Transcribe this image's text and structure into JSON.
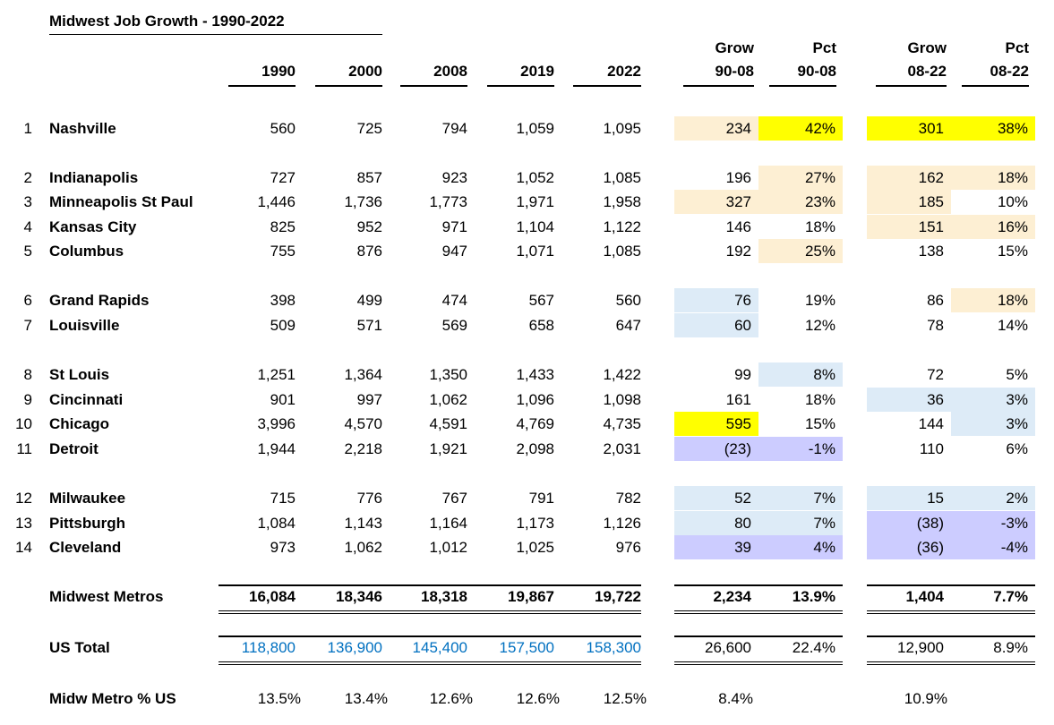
{
  "title": "Midwest Job Growth - 1990-2022",
  "colors": {
    "tan": "#fdefd3",
    "yellow": "#ffff00",
    "light_blue": "#ddebf7",
    "lavender": "#ccccff",
    "us_total_blue": "#0070c0"
  },
  "headers": {
    "years": [
      "1990",
      "2000",
      "2008",
      "2019",
      "2022"
    ],
    "grow_90_08": [
      "Grow",
      "90-08"
    ],
    "pct_90_08": [
      "Pct",
      "90-08"
    ],
    "grow_08_22": [
      "Grow",
      "08-22"
    ],
    "pct_08_22": [
      "Pct",
      "08-22"
    ]
  },
  "rows": [
    {
      "rank": "1",
      "name": "Nashville",
      "v": [
        "560",
        "725",
        "794",
        "1,059",
        "1,095"
      ],
      "g1": "234",
      "p1": "42%",
      "g2": "301",
      "p2": "38%",
      "c": [
        "tan",
        "yellow",
        "yellow",
        "yellow"
      ]
    },
    {
      "rank": "2",
      "name": "Indianapolis",
      "v": [
        "727",
        "857",
        "923",
        "1,052",
        "1,085"
      ],
      "g1": "196",
      "p1": "27%",
      "g2": "162",
      "p2": "18%",
      "c": [
        "",
        "tan",
        "tan",
        "tan"
      ]
    },
    {
      "rank": "3",
      "name": "Minneapolis St Paul",
      "v": [
        "1,446",
        "1,736",
        "1,773",
        "1,971",
        "1,958"
      ],
      "g1": "327",
      "p1": "23%",
      "g2": "185",
      "p2": "10%",
      "c": [
        "tan",
        "tan",
        "tan",
        ""
      ]
    },
    {
      "rank": "4",
      "name": "Kansas City",
      "v": [
        "825",
        "952",
        "971",
        "1,104",
        "1,122"
      ],
      "g1": "146",
      "p1": "18%",
      "g2": "151",
      "p2": "16%",
      "c": [
        "",
        "",
        "tan",
        "tan"
      ]
    },
    {
      "rank": "5",
      "name": "Columbus",
      "v": [
        "755",
        "876",
        "947",
        "1,071",
        "1,085"
      ],
      "g1": "192",
      "p1": "25%",
      "g2": "138",
      "p2": "15%",
      "c": [
        "",
        "tan",
        "",
        ""
      ]
    },
    {
      "rank": "6",
      "name": "Grand Rapids",
      "v": [
        "398",
        "499",
        "474",
        "567",
        "560"
      ],
      "g1": "76",
      "p1": "19%",
      "g2": "86",
      "p2": "18%",
      "c": [
        "light_blue",
        "",
        "",
        "tan"
      ]
    },
    {
      "rank": "7",
      "name": "Louisville",
      "v": [
        "509",
        "571",
        "569",
        "658",
        "647"
      ],
      "g1": "60",
      "p1": "12%",
      "g2": "78",
      "p2": "14%",
      "c": [
        "light_blue",
        "",
        "",
        ""
      ]
    },
    {
      "rank": "8",
      "name": "St Louis",
      "v": [
        "1,251",
        "1,364",
        "1,350",
        "1,433",
        "1,422"
      ],
      "g1": "99",
      "p1": "8%",
      "g2": "72",
      "p2": "5%",
      "c": [
        "",
        "light_blue",
        "",
        ""
      ]
    },
    {
      "rank": "9",
      "name": "Cincinnati",
      "v": [
        "901",
        "997",
        "1,062",
        "1,096",
        "1,098"
      ],
      "g1": "161",
      "p1": "18%",
      "g2": "36",
      "p2": "3%",
      "c": [
        "",
        "",
        "light_blue",
        "light_blue"
      ]
    },
    {
      "rank": "10",
      "name": "Chicago",
      "v": [
        "3,996",
        "4,570",
        "4,591",
        "4,769",
        "4,735"
      ],
      "g1": "595",
      "p1": "15%",
      "g2": "144",
      "p2": "3%",
      "c": [
        "yellow",
        "",
        "",
        "light_blue"
      ]
    },
    {
      "rank": "11",
      "name": "Detroit",
      "v": [
        "1,944",
        "2,218",
        "1,921",
        "2,098",
        "2,031"
      ],
      "g1": "(23)",
      "p1": "-1%",
      "g2": "110",
      "p2": "6%",
      "c": [
        "lavender",
        "lavender",
        "",
        ""
      ]
    },
    {
      "rank": "12",
      "name": "Milwaukee",
      "v": [
        "715",
        "776",
        "767",
        "791",
        "782"
      ],
      "g1": "52",
      "p1": "7%",
      "g2": "15",
      "p2": "2%",
      "c": [
        "light_blue",
        "light_blue",
        "light_blue",
        "light_blue"
      ]
    },
    {
      "rank": "13",
      "name": "Pittsburgh",
      "v": [
        "1,084",
        "1,143",
        "1,164",
        "1,173",
        "1,126"
      ],
      "g1": "80",
      "p1": "7%",
      "g2": "(38)",
      "p2": "-3%",
      "c": [
        "light_blue",
        "light_blue",
        "lavender",
        "lavender"
      ]
    },
    {
      "rank": "14",
      "name": "Cleveland",
      "v": [
        "973",
        "1,062",
        "1,012",
        "1,025",
        "976"
      ],
      "g1": "39",
      "p1": "4%",
      "g2": "(36)",
      "p2": "-4%",
      "c": [
        "lavender",
        "lavender",
        "lavender",
        "lavender"
      ]
    }
  ],
  "totals": {
    "midwest": {
      "label": "Midwest Metros",
      "v": [
        "16,084",
        "18,346",
        "18,318",
        "19,867",
        "19,722"
      ],
      "g1": "2,234",
      "p1": "13.9%",
      "g2": "1,404",
      "p2": "7.7%"
    },
    "us": {
      "label": "US Total",
      "v": [
        "118,800",
        "136,900",
        "145,400",
        "157,500",
        "158,300"
      ],
      "g1": "26,600",
      "p1": "22.4%",
      "g2": "12,900",
      "p2": "8.9%"
    },
    "share": {
      "label": "Midw Metro % US",
      "v": [
        "13.5%",
        "13.4%",
        "12.6%",
        "12.6%",
        "12.5%"
      ],
      "g1": "8.4%",
      "g2": "10.9%"
    }
  }
}
